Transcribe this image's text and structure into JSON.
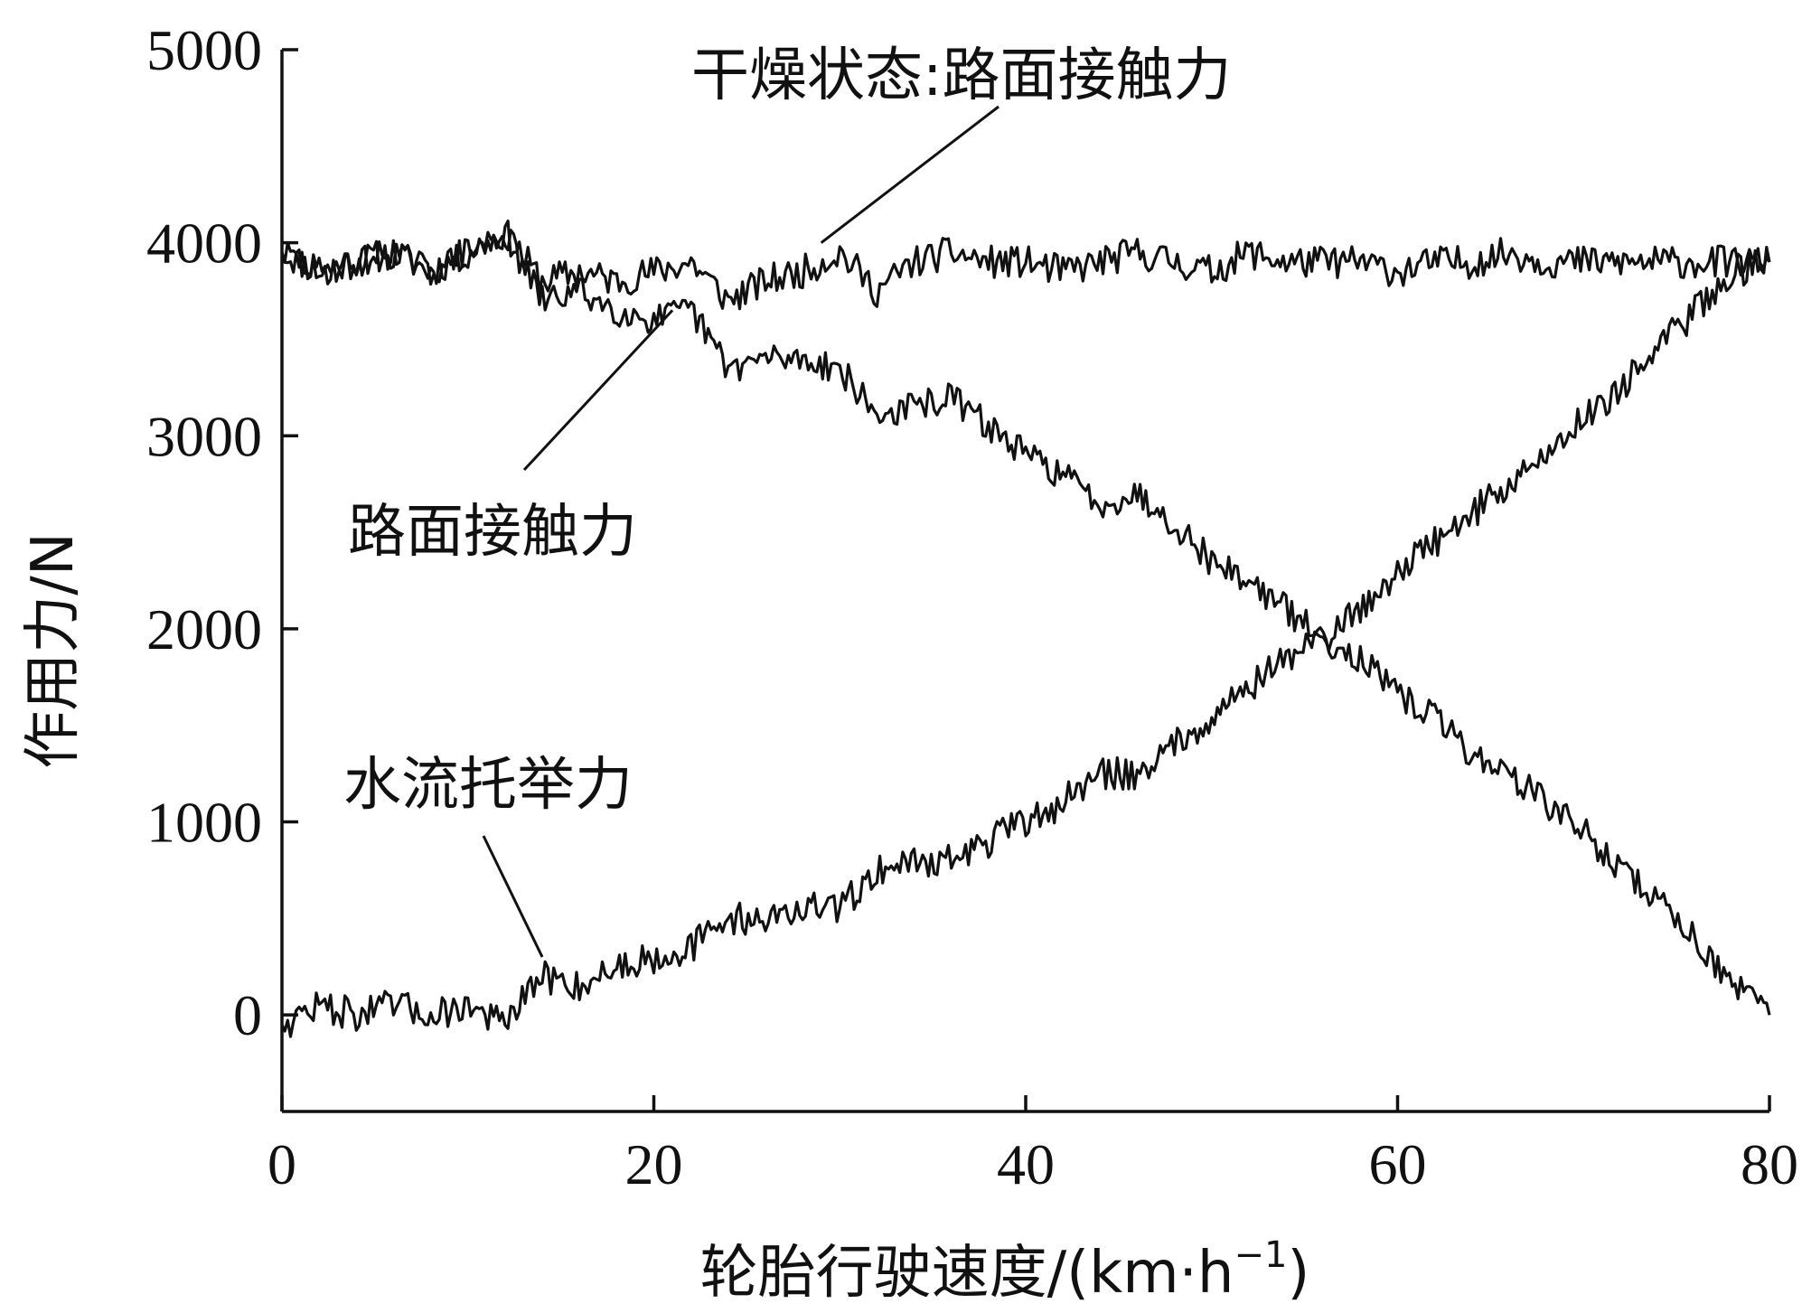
{
  "chart_data": {
    "type": "line",
    "xlabel": "轮胎行驶速度/(km·h",
    "xlabel_exponent": "−1",
    "xlabel_close": ")",
    "ylabel": "作用力/N",
    "xlim": [
      0,
      80
    ],
    "ylim": [
      -500,
      5000
    ],
    "x_ticks": [
      0,
      20,
      40,
      60,
      80
    ],
    "y_ticks": [
      0,
      1000,
      2000,
      3000,
      4000,
      5000
    ],
    "x_tick_labels": [
      "0",
      "20",
      "40",
      "60",
      "80"
    ],
    "y_tick_labels": [
      "0",
      "1000",
      "2000",
      "3000",
      "4000",
      "5000"
    ],
    "grid": false,
    "annotations": [
      {
        "id": "dry",
        "text": "干燥状态:路面接触力",
        "points_to": {
          "x": 29,
          "y": 4000
        }
      },
      {
        "id": "contact",
        "text": "路面接触力",
        "points_to": {
          "x": 21,
          "y": 3650
        }
      },
      {
        "id": "lift",
        "text": "水流托举力",
        "points_to": {
          "x": 14,
          "y": 300
        }
      }
    ],
    "series": [
      {
        "id": "dry",
        "x": [
          0,
          2,
          4,
          6,
          8,
          10,
          12,
          14,
          16,
          18,
          20,
          22,
          24,
          26,
          28,
          30,
          32,
          34,
          36,
          38,
          40,
          42,
          44,
          46,
          48,
          50,
          52,
          54,
          56,
          58,
          60,
          62,
          64,
          66,
          68,
          70,
          72,
          74,
          76,
          78,
          80
        ],
        "values": [
          3950,
          3850,
          3900,
          3950,
          3850,
          3950,
          4050,
          3800,
          3850,
          3800,
          3850,
          3900,
          3700,
          3800,
          3850,
          3950,
          3750,
          3900,
          3950,
          3900,
          3900,
          3850,
          3900,
          3950,
          3900,
          3850,
          3950,
          3900,
          3900,
          3900,
          3850,
          3900,
          3900,
          3950,
          3900,
          3900,
          3900,
          3900,
          3900,
          3900,
          3900
        ]
      },
      {
        "id": "contact",
        "x": [
          0,
          2,
          4,
          6,
          8,
          10,
          12,
          14,
          16,
          18,
          20,
          22,
          24,
          26,
          28,
          30,
          32,
          34,
          36,
          38,
          40,
          42,
          44,
          46,
          48,
          50,
          52,
          54,
          56,
          58,
          60,
          62,
          64,
          66,
          68,
          70,
          72,
          74,
          76,
          78,
          80
        ],
        "values": [
          3950,
          3850,
          3900,
          3950,
          3850,
          3950,
          4050,
          3700,
          3750,
          3650,
          3600,
          3650,
          3350,
          3400,
          3400,
          3350,
          3100,
          3150,
          3200,
          3050,
          2900,
          2800,
          2650,
          2700,
          2550,
          2350,
          2250,
          2100,
          1950,
          1850,
          1650,
          1550,
          1350,
          1250,
          1100,
          950,
          750,
          600,
          400,
          150,
          0
        ]
      },
      {
        "id": "lift",
        "x": [
          0,
          2,
          4,
          6,
          8,
          10,
          12,
          14,
          16,
          18,
          20,
          22,
          24,
          26,
          28,
          30,
          32,
          34,
          36,
          38,
          40,
          42,
          44,
          46,
          48,
          50,
          52,
          54,
          56,
          58,
          60,
          62,
          64,
          66,
          68,
          70,
          72,
          74,
          76,
          78,
          80
        ],
        "values": [
          -50,
          50,
          0,
          50,
          0,
          50,
          -50,
          200,
          150,
          250,
          300,
          350,
          500,
          500,
          550,
          550,
          750,
          800,
          800,
          900,
          1000,
          1100,
          1250,
          1250,
          1400,
          1550,
          1700,
          1850,
          1950,
          2100,
          2300,
          2450,
          2600,
          2750,
          2900,
          3100,
          3250,
          3450,
          3650,
          3850,
          3900
        ]
      }
    ]
  }
}
